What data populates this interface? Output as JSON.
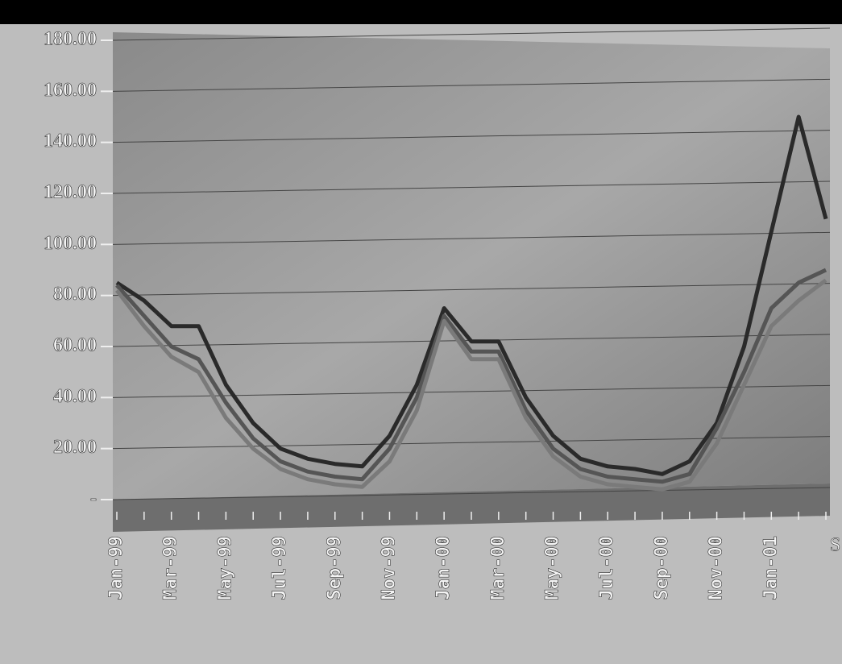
{
  "chart_data": {
    "type": "line",
    "categories": [
      "Jan-99",
      null,
      "Mar-99",
      null,
      "May-99",
      null,
      "Jul-99",
      null,
      "Sep-99",
      null,
      "Nov-99",
      null,
      "Jan-00",
      null,
      "Mar-00",
      null,
      "May-00",
      null,
      "Jul-00",
      null,
      "Sep-00",
      null,
      "Nov-00",
      null,
      "Jan-01",
      null,
      null
    ],
    "series": [
      {
        "color": "#2a2a2a",
        "values": [
          85,
          78,
          68,
          68,
          45,
          30,
          20,
          16,
          14,
          13,
          25,
          45,
          75,
          62,
          62,
          40,
          25,
          16,
          13,
          12,
          10,
          15,
          30,
          60,
          105,
          150,
          110
        ]
      },
      {
        "color": "#555555",
        "values": [
          84,
          72,
          60,
          55,
          38,
          24,
          15,
          11,
          9,
          8,
          20,
          40,
          72,
          58,
          58,
          35,
          20,
          12,
          9,
          8,
          7,
          10,
          28,
          50,
          75,
          85,
          90
        ]
      },
      {
        "color": "#7a7a7a",
        "values": [
          82,
          68,
          56,
          50,
          32,
          20,
          12,
          8,
          6,
          5,
          15,
          35,
          70,
          55,
          55,
          32,
          17,
          9,
          6,
          5,
          4,
          7,
          22,
          45,
          68,
          78,
          86
        ]
      }
    ],
    "ylim": [
      0,
      180
    ],
    "yticks": [
      {
        "value": 0,
        "label": "-"
      },
      {
        "value": 20,
        "label": "20.00"
      },
      {
        "value": 40,
        "label": "40.00"
      },
      {
        "value": 60,
        "label": "60.00"
      },
      {
        "value": 80,
        "label": "80.00"
      },
      {
        "value": 100,
        "label": "100.00"
      },
      {
        "value": 120,
        "label": "120.00"
      },
      {
        "value": 140,
        "label": "140.00"
      },
      {
        "value": 160,
        "label": "160.00"
      },
      {
        "value": 180,
        "label": "180.00"
      }
    ],
    "grid": true,
    "z_axis_label": "S"
  }
}
